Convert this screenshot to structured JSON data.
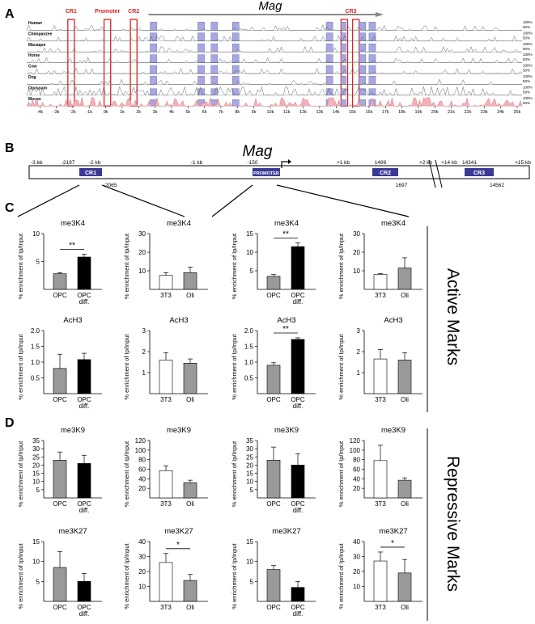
{
  "panels": {
    "a": "A",
    "b": "B",
    "c": "C",
    "d": "D"
  },
  "vista": {
    "gene": "Mag",
    "region_labels": [
      "CR1",
      "Promoter",
      "CR2",
      "CR3"
    ],
    "species": [
      "Human",
      "Chimpanzee",
      "Macaque",
      "Horse",
      "Cow",
      "Dog",
      "Opossum",
      "Mouse"
    ],
    "pct_top": "100%",
    "pct_mid": "50%",
    "kb_ticks": [
      "-4k",
      "-3k",
      "-2k",
      "-1k",
      "0k",
      "1k",
      "2k",
      "3k",
      "4k",
      "5k",
      "6k",
      "7k",
      "8k",
      "9k",
      "10k",
      "11k",
      "12k",
      "13k",
      "14k",
      "15k",
      "16k",
      "17k",
      "18k",
      "19k",
      "20k",
      "21k",
      "22k",
      "23k",
      "24k",
      "25k"
    ]
  },
  "map": {
    "gene": "Mag",
    "scale_labels": [
      "-3 kb",
      "-2 kb",
      "-1 kb",
      "+1 kb",
      "+2 kb",
      "+14 kb",
      "+15 kb"
    ],
    "regions": [
      {
        "name": "CR1",
        "start": "-2197",
        "end": "-2065"
      },
      {
        "name": "PROMOTER",
        "start": "-150",
        "end": ""
      },
      {
        "name": "CR2",
        "start": "1499",
        "end": "1697"
      },
      {
        "name": "CR3",
        "start": "14341",
        "end": "14562"
      }
    ]
  },
  "side_labels": {
    "active": "Active Marks",
    "repressive": "Repressive Marks"
  },
  "bar_colors": {
    "opc": "#999999",
    "diff": "#000000",
    "t3": "#ffffff",
    "oli": "#999999"
  },
  "ylabel": "% enrichment of Ip/Input",
  "chart_data": [
    {
      "id": "c1",
      "type": "bar",
      "title": "me3K4",
      "categories": [
        "OPC",
        "OPC diff."
      ],
      "values": [
        2.8,
        5.8
      ],
      "errors": [
        0.2,
        0.5
      ],
      "yticks": [
        5,
        10
      ],
      "ylim": [
        0,
        10
      ],
      "significance": "**"
    },
    {
      "id": "c2",
      "type": "bar",
      "title": "me3K4",
      "categories": [
        "3T3",
        "Oli"
      ],
      "values": [
        7.5,
        9
      ],
      "errors": [
        1.5,
        3
      ],
      "yticks": [
        10,
        20,
        30
      ],
      "ylim": [
        0,
        30
      ],
      "significance": ""
    },
    {
      "id": "c3",
      "type": "bar",
      "title": "me3K4",
      "categories": [
        "OPC",
        "OPC diff."
      ],
      "values": [
        3.5,
        11.5
      ],
      "errors": [
        0.5,
        1
      ],
      "yticks": [
        5,
        10,
        15
      ],
      "ylim": [
        0,
        15
      ],
      "significance": "**"
    },
    {
      "id": "c4",
      "type": "bar",
      "title": "me3K4",
      "categories": [
        "3T3",
        "Oli"
      ],
      "values": [
        8,
        11.5
      ],
      "errors": [
        0.5,
        5.5
      ],
      "yticks": [
        10,
        20,
        30
      ],
      "ylim": [
        0,
        30
      ],
      "significance": ""
    },
    {
      "id": "c5",
      "type": "bar",
      "title": "AcH3",
      "categories": [
        "OPC",
        "OPC diff."
      ],
      "values": [
        0.8,
        1.08
      ],
      "errors": [
        0.45,
        0.2
      ],
      "yticks": [
        0.5,
        1.0,
        1.5,
        2.0
      ],
      "ylim": [
        0,
        2
      ],
      "significance": ""
    },
    {
      "id": "c6",
      "type": "bar",
      "title": "AcH3",
      "categories": [
        "3T3",
        "Oli"
      ],
      "values": [
        1.6,
        1.45
      ],
      "errors": [
        0.35,
        0.2
      ],
      "yticks": [
        1,
        2,
        3
      ],
      "ylim": [
        0,
        3
      ],
      "significance": ""
    },
    {
      "id": "c7",
      "type": "bar",
      "title": "AcH3",
      "categories": [
        "OPC",
        "OPC diff."
      ],
      "values": [
        0.9,
        1.72
      ],
      "errors": [
        0.08,
        0.05
      ],
      "yticks": [
        0.5,
        1.0,
        1.5,
        2.0
      ],
      "ylim": [
        0,
        2
      ],
      "significance": "**"
    },
    {
      "id": "c8",
      "type": "bar",
      "title": "AcH3",
      "categories": [
        "3T3",
        "Oli"
      ],
      "values": [
        1.65,
        1.6
      ],
      "errors": [
        0.45,
        0.35
      ],
      "yticks": [
        1,
        2,
        3
      ],
      "ylim": [
        0,
        3
      ],
      "significance": ""
    },
    {
      "id": "c9",
      "type": "bar",
      "title": "me3K9",
      "categories": [
        "OPC",
        "OPC diff."
      ],
      "values": [
        23,
        21
      ],
      "errors": [
        5,
        5
      ],
      "yticks": [
        5,
        10,
        15,
        20,
        25,
        30,
        35
      ],
      "ylim": [
        0,
        35
      ],
      "significance": ""
    },
    {
      "id": "c10",
      "type": "bar",
      "title": "me3K9",
      "categories": [
        "3T3",
        "Oli"
      ],
      "values": [
        57,
        32
      ],
      "errors": [
        10,
        5
      ],
      "yticks": [
        20,
        40,
        60,
        80,
        100,
        120
      ],
      "ylim": [
        0,
        120
      ],
      "significance": ""
    },
    {
      "id": "c11",
      "type": "bar",
      "title": "me3K9",
      "categories": [
        "OPC",
        "OPC diff."
      ],
      "values": [
        23,
        20
      ],
      "errors": [
        8,
        7
      ],
      "yticks": [
        5,
        10,
        15,
        20,
        25,
        30,
        35
      ],
      "ylim": [
        0,
        35
      ],
      "significance": ""
    },
    {
      "id": "c12",
      "type": "bar",
      "title": "me3K9",
      "categories": [
        "3T3",
        "Oli"
      ],
      "values": [
        78,
        37
      ],
      "errors": [
        32,
        5
      ],
      "yticks": [
        20,
        40,
        60,
        80,
        100,
        120
      ],
      "ylim": [
        0,
        120
      ],
      "significance": ""
    },
    {
      "id": "c13",
      "type": "bar",
      "title": "me3K27",
      "categories": [
        "OPC",
        "OPC diff."
      ],
      "values": [
        8.5,
        5
      ],
      "errors": [
        4,
        2
      ],
      "yticks": [
        5,
        10,
        15
      ],
      "ylim": [
        0,
        15
      ],
      "significance": ""
    },
    {
      "id": "c14",
      "type": "bar",
      "title": "me3K27",
      "categories": [
        "3T3",
        "Oli"
      ],
      "values": [
        26,
        14
      ],
      "errors": [
        6,
        4
      ],
      "yticks": [
        10,
        20,
        30,
        40
      ],
      "ylim": [
        0,
        40
      ],
      "significance": "*"
    },
    {
      "id": "c15",
      "type": "bar",
      "title": "me3K27",
      "categories": [
        "OPC",
        "OPC diff."
      ],
      "values": [
        8,
        3.5
      ],
      "errors": [
        1,
        1.5
      ],
      "yticks": [
        5,
        10,
        15
      ],
      "ylim": [
        0,
        15
      ],
      "significance": ""
    },
    {
      "id": "c16",
      "type": "bar",
      "title": "me3K27",
      "categories": [
        "3T3",
        "Oli"
      ],
      "values": [
        27,
        19
      ],
      "errors": [
        6,
        9
      ],
      "yticks": [
        10,
        20,
        30,
        40
      ],
      "ylim": [
        0,
        40
      ],
      "significance": "*"
    }
  ]
}
